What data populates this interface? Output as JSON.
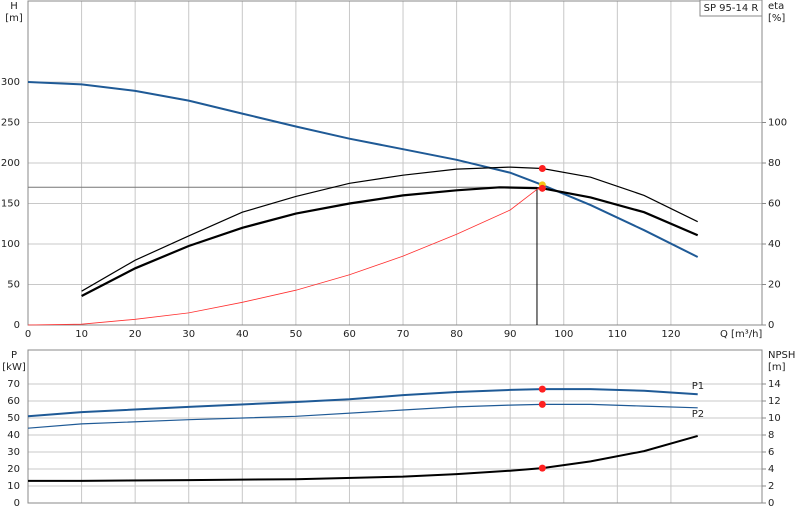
{
  "chart_data": [
    {
      "type": "line",
      "title": "SP 95-14 R",
      "ylabel": "H",
      "yunit": "[m]",
      "y2label": "eta",
      "y2unit": "[%]",
      "xlabel": "Q [m³/h]",
      "xlim": [
        0,
        137
      ],
      "xticks": [
        0,
        10,
        20,
        30,
        40,
        50,
        60,
        70,
        80,
        90,
        100,
        110,
        120
      ],
      "show_xtick_labels": true,
      "ylim": [
        0,
        400
      ],
      "yticks": [
        0,
        50,
        100,
        150,
        200,
        250,
        300
      ],
      "y2lim": [
        0,
        160
      ],
      "y2ticks": [
        0,
        20,
        40,
        60,
        80,
        100
      ],
      "grid": true,
      "series": [
        {
          "color": "#1f5a96",
          "width": 2,
          "axis": "y",
          "x": [
            0,
            10,
            20,
            30,
            40,
            50,
            60,
            70,
            80,
            90,
            96,
            105,
            115,
            125
          ],
          "values": [
            300,
            297,
            289,
            277,
            261,
            245,
            230,
            217,
            204,
            188,
            173,
            148,
            117,
            84
          ]
        },
        {
          "color": "#000000",
          "width": 1.2,
          "axis": "y2",
          "x": [
            10,
            20,
            30,
            40,
            50,
            60,
            70,
            80,
            90,
            96,
            105,
            115,
            125
          ],
          "values": [
            16.7,
            32,
            44,
            55.7,
            63.5,
            70,
            74,
            77,
            78,
            77.3,
            73,
            64,
            51
          ]
        },
        {
          "color": "#000000",
          "width": 2.2,
          "axis": "y2",
          "x": [
            10,
            20,
            30,
            40,
            50,
            60,
            70,
            80,
            88,
            96,
            105,
            115,
            125
          ],
          "values": [
            14.3,
            28,
            39,
            48,
            55,
            60,
            64,
            66.5,
            68,
            67.5,
            63,
            55.7,
            44.3
          ]
        },
        {
          "color": "#ff3030",
          "width": 0.8,
          "axis": "y",
          "x": [
            0,
            10,
            20,
            30,
            40,
            50,
            60,
            70,
            80,
            90,
            95.5
          ],
          "values": [
            0,
            1,
            7,
            15,
            28,
            43,
            62,
            85,
            112,
            142,
            170
          ]
        }
      ],
      "duty_lines": {
        "x": 95,
        "y": 170,
        "color": "#000000"
      },
      "markers": [
        {
          "x": 96,
          "y": 77.3,
          "axis": "y2",
          "color": "#ff2020"
        },
        {
          "x": 96,
          "y": 173,
          "axis": "y",
          "color": "#f5c518"
        },
        {
          "x": 96,
          "y": 67.5,
          "axis": "y2",
          "color": "#ff2020"
        }
      ]
    },
    {
      "type": "line",
      "ylabel": "P",
      "yunit": "[kW]",
      "y2label": "NPSH",
      "y2unit": "[m]",
      "xlim": [
        0,
        137
      ],
      "xticks": [
        0,
        10,
        20,
        30,
        40,
        50,
        60,
        70,
        80,
        90,
        100,
        110,
        120
      ],
      "show_xtick_labels": false,
      "ylim": [
        0,
        90
      ],
      "yticks": [
        0,
        10,
        20,
        30,
        40,
        50,
        60,
        70
      ],
      "y2lim": [
        0,
        18
      ],
      "y2ticks": [
        0,
        2,
        4,
        6,
        8,
        10,
        12,
        14
      ],
      "grid": true,
      "series": [
        {
          "name": "P1",
          "color": "#1f5a96",
          "width": 2,
          "axis": "y",
          "x": [
            0,
            10,
            30,
            50,
            60,
            70,
            80,
            90,
            96,
            105,
            115,
            125
          ],
          "values": [
            51,
            53.5,
            56.5,
            59.4,
            61,
            63.5,
            65.3,
            66.5,
            67,
            67,
            66,
            64
          ]
        },
        {
          "name": "P2",
          "color": "#1f5a96",
          "width": 1.2,
          "axis": "y",
          "x": [
            0,
            10,
            30,
            50,
            70,
            80,
            90,
            96,
            105,
            115,
            125
          ],
          "values": [
            44,
            46.5,
            49,
            51,
            54.7,
            56.5,
            57.6,
            58,
            58,
            57,
            56
          ]
        },
        {
          "color": "#000000",
          "width": 2,
          "axis": "y2",
          "x": [
            0,
            10,
            30,
            50,
            70,
            80,
            90,
            96,
            105,
            115,
            125
          ],
          "values": [
            2.6,
            2.6,
            2.7,
            2.8,
            3.1,
            3.4,
            3.8,
            4.1,
            4.9,
            6.1,
            7.9
          ]
        }
      ],
      "markers": [
        {
          "x": 96,
          "y": 67,
          "axis": "y",
          "color": "#ff2020"
        },
        {
          "x": 96,
          "y": 58,
          "axis": "y",
          "color": "#ff2020"
        },
        {
          "x": 96,
          "y": 4.1,
          "axis": "y2",
          "color": "#ff2020"
        }
      ]
    }
  ]
}
